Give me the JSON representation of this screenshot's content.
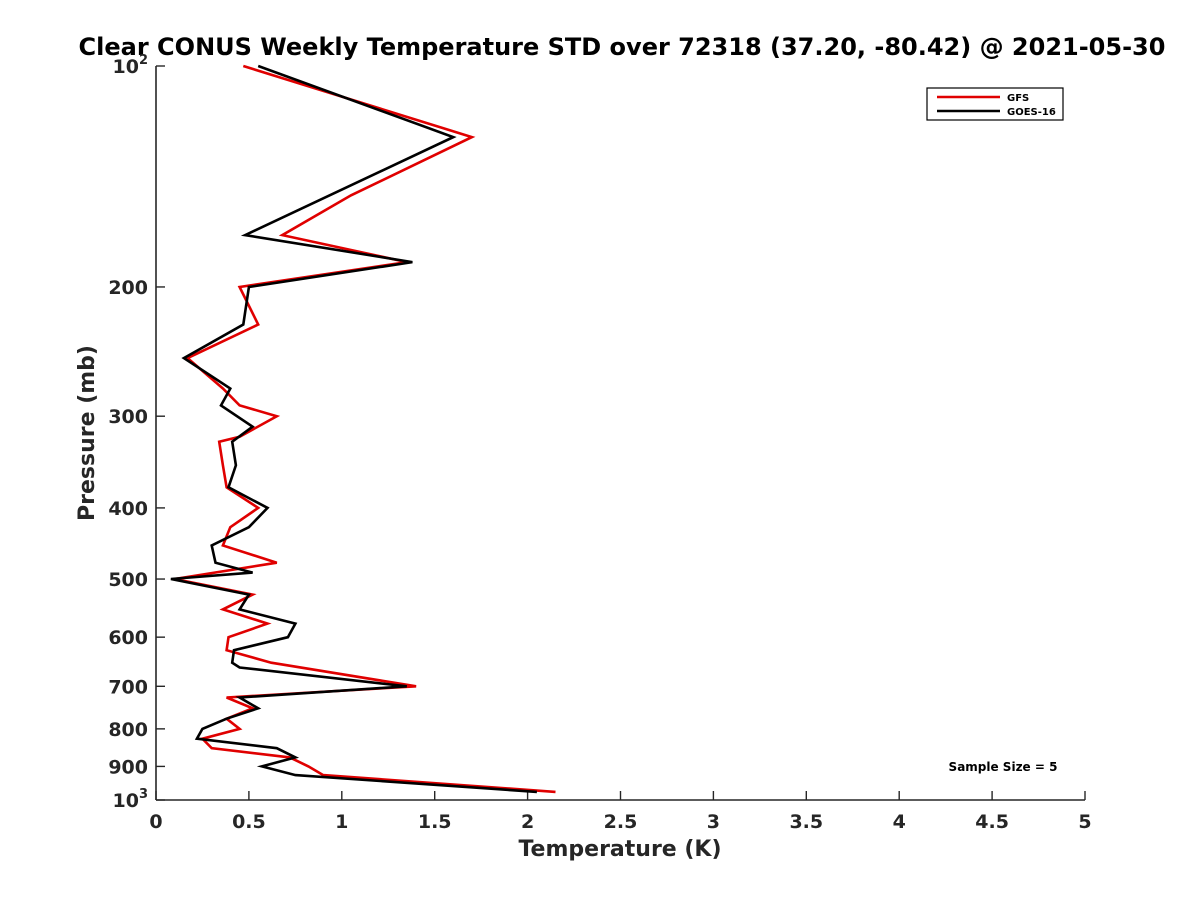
{
  "chart_data": {
    "type": "line",
    "title": "Clear CONUS Weekly Temperature STD over 72318 (37.20, -80.42) @ 2021-05-30",
    "xlabel": "Temperature (K)",
    "ylabel": "Pressure (mb)",
    "xlim": [
      0,
      5
    ],
    "ylim": [
      100,
      1000
    ],
    "y_scale": "log",
    "y_reversed": true,
    "grid": false,
    "legend_position": "top-right",
    "annotation": "Sample Size = 5",
    "x_ticks": [
      {
        "value": 0,
        "label": "0"
      },
      {
        "value": 0.5,
        "label": "0.5"
      },
      {
        "value": 1,
        "label": "1"
      },
      {
        "value": 1.5,
        "label": "1.5"
      },
      {
        "value": 2,
        "label": "2"
      },
      {
        "value": 2.5,
        "label": "2.5"
      },
      {
        "value": 3,
        "label": "3"
      },
      {
        "value": 3.5,
        "label": "3.5"
      },
      {
        "value": 4,
        "label": "4"
      },
      {
        "value": 4.5,
        "label": "4.5"
      },
      {
        "value": 5,
        "label": "5"
      }
    ],
    "y_ticks": [
      {
        "value": 100,
        "label": "10",
        "sup": "2"
      },
      {
        "value": 200,
        "label": "200"
      },
      {
        "value": 300,
        "label": "300"
      },
      {
        "value": 400,
        "label": "400"
      },
      {
        "value": 500,
        "label": "500"
      },
      {
        "value": 600,
        "label": "600"
      },
      {
        "value": 700,
        "label": "700"
      },
      {
        "value": 800,
        "label": "800"
      },
      {
        "value": 900,
        "label": "900"
      },
      {
        "value": 1000,
        "label": "10",
        "sup": "3"
      }
    ],
    "series": [
      {
        "name": "GFS",
        "color": "#e00000",
        "points": [
          {
            "x": 0.47,
            "y": 100
          },
          {
            "x": 1.7,
            "y": 125
          },
          {
            "x": 1.05,
            "y": 150
          },
          {
            "x": 0.68,
            "y": 170
          },
          {
            "x": 1.35,
            "y": 185
          },
          {
            "x": 0.45,
            "y": 200
          },
          {
            "x": 0.55,
            "y": 225
          },
          {
            "x": 0.17,
            "y": 250
          },
          {
            "x": 0.36,
            "y": 275
          },
          {
            "x": 0.45,
            "y": 290
          },
          {
            "x": 0.65,
            "y": 300
          },
          {
            "x": 0.45,
            "y": 320
          },
          {
            "x": 0.34,
            "y": 325
          },
          {
            "x": 0.36,
            "y": 350
          },
          {
            "x": 0.38,
            "y": 375
          },
          {
            "x": 0.55,
            "y": 400
          },
          {
            "x": 0.4,
            "y": 425
          },
          {
            "x": 0.36,
            "y": 450
          },
          {
            "x": 0.65,
            "y": 475
          },
          {
            "x": 0.1,
            "y": 500
          },
          {
            "x": 0.52,
            "y": 525
          },
          {
            "x": 0.36,
            "y": 550
          },
          {
            "x": 0.6,
            "y": 575
          },
          {
            "x": 0.39,
            "y": 600
          },
          {
            "x": 0.38,
            "y": 625
          },
          {
            "x": 0.62,
            "y": 650
          },
          {
            "x": 1.4,
            "y": 700
          },
          {
            "x": 0.38,
            "y": 725
          },
          {
            "x": 0.52,
            "y": 750
          },
          {
            "x": 0.38,
            "y": 775
          },
          {
            "x": 0.45,
            "y": 800
          },
          {
            "x": 0.25,
            "y": 825
          },
          {
            "x": 0.3,
            "y": 850
          },
          {
            "x": 0.72,
            "y": 875
          },
          {
            "x": 0.82,
            "y": 900
          },
          {
            "x": 0.9,
            "y": 925
          },
          {
            "x": 2.15,
            "y": 975
          }
        ]
      },
      {
        "name": "GOES-16",
        "color": "#000000",
        "points": [
          {
            "x": 0.55,
            "y": 100
          },
          {
            "x": 1.6,
            "y": 125
          },
          {
            "x": 0.48,
            "y": 170
          },
          {
            "x": 1.38,
            "y": 185
          },
          {
            "x": 0.5,
            "y": 200
          },
          {
            "x": 0.47,
            "y": 225
          },
          {
            "x": 0.15,
            "y": 250
          },
          {
            "x": 0.4,
            "y": 275
          },
          {
            "x": 0.35,
            "y": 290
          },
          {
            "x": 0.52,
            "y": 310
          },
          {
            "x": 0.41,
            "y": 325
          },
          {
            "x": 0.43,
            "y": 350
          },
          {
            "x": 0.39,
            "y": 375
          },
          {
            "x": 0.6,
            "y": 400
          },
          {
            "x": 0.5,
            "y": 425
          },
          {
            "x": 0.3,
            "y": 450
          },
          {
            "x": 0.32,
            "y": 475
          },
          {
            "x": 0.52,
            "y": 490
          },
          {
            "x": 0.08,
            "y": 500
          },
          {
            "x": 0.5,
            "y": 525
          },
          {
            "x": 0.45,
            "y": 550
          },
          {
            "x": 0.75,
            "y": 575
          },
          {
            "x": 0.71,
            "y": 600
          },
          {
            "x": 0.42,
            "y": 625
          },
          {
            "x": 0.41,
            "y": 650
          },
          {
            "x": 0.45,
            "y": 660
          },
          {
            "x": 1.35,
            "y": 700
          },
          {
            "x": 0.45,
            "y": 725
          },
          {
            "x": 0.55,
            "y": 750
          },
          {
            "x": 0.38,
            "y": 775
          },
          {
            "x": 0.25,
            "y": 800
          },
          {
            "x": 0.22,
            "y": 825
          },
          {
            "x": 0.65,
            "y": 850
          },
          {
            "x": 0.75,
            "y": 875
          },
          {
            "x": 0.57,
            "y": 900
          },
          {
            "x": 0.75,
            "y": 925
          },
          {
            "x": 2.05,
            "y": 975
          }
        ]
      }
    ]
  }
}
